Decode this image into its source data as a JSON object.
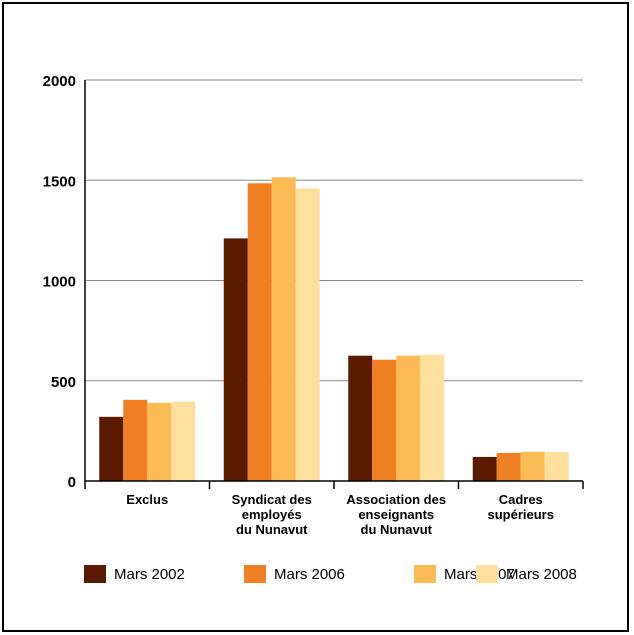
{
  "chart_data": {
    "type": "bar",
    "title": "",
    "xlabel": "",
    "ylabel": "",
    "ylim": [
      0,
      2000
    ],
    "yticks": [
      0,
      500,
      1000,
      1500,
      2000
    ],
    "grid": true,
    "legend_position": "bottom",
    "categories": [
      [
        "Exclus"
      ],
      [
        "Syndicat des",
        "employés",
        "du Nunavut"
      ],
      [
        "Association des",
        "enseignants",
        "du Nunavut"
      ],
      [
        "Cadres",
        "supérieurs"
      ]
    ],
    "series": [
      {
        "name": "Mars 2002",
        "color": "#5a1a00",
        "values": [
          320,
          1210,
          625,
          120
        ]
      },
      {
        "name": "Mars 2006",
        "color": "#f07f24",
        "values": [
          405,
          1485,
          605,
          140
        ]
      },
      {
        "name": "Mars 2007",
        "color": "#fdbb55",
        "values": [
          390,
          1515,
          625,
          145
        ]
      },
      {
        "name": "Mars 2008",
        "color": "#fddf9e",
        "values": [
          395,
          1460,
          630,
          145
        ]
      }
    ]
  }
}
